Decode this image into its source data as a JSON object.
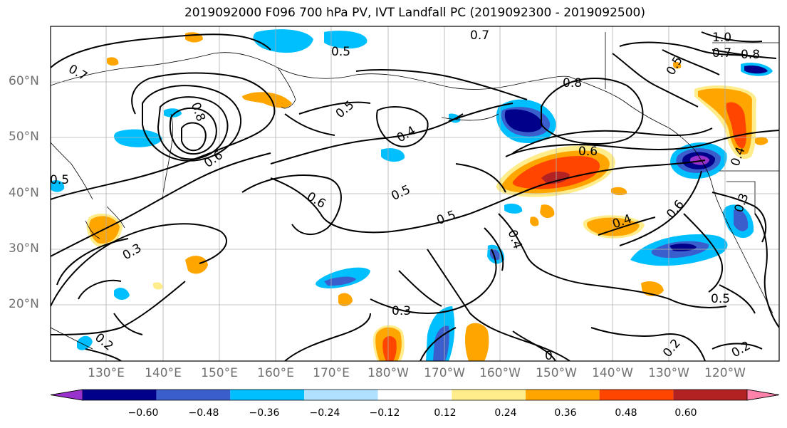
{
  "title": "2019092000 F096 700 hPa PV, IVT Landfall PC (2019092300 - 2019092500)",
  "lat_labels": [
    "60°N",
    "50°N",
    "40°N",
    "30°N",
    "20°N"
  ],
  "lon_labels": [
    "130°E",
    "140°E",
    "150°E",
    "160°E",
    "170°E",
    "180°W",
    "170°W",
    "160°W",
    "150°W",
    "140°W",
    "130°W",
    "120°W"
  ],
  "colorbar": {
    "ticks": [
      "−0.60",
      "−0.48",
      "−0.36",
      "−0.24",
      "−0.12",
      "0.12",
      "0.24",
      "0.36",
      "0.48",
      "0.60"
    ],
    "colors": [
      "#9932CC",
      "#00008B",
      "#3A5FCD",
      "#00BFFF",
      "#B0E2FF",
      "#FFFFFF",
      "#FFEC8B",
      "#FFA500",
      "#FF4500",
      "#B22222",
      "#FF82AB"
    ]
  },
  "contour_labels": [
    "0.7",
    "0.5",
    "0.7",
    "1.0",
    "0.7",
    "0.8",
    "0.5",
    "0.8",
    "0.8",
    "0.5",
    "0.4",
    "0.6",
    "0.6",
    "0.5",
    "0.6",
    "0.5",
    "0.4",
    "0.6",
    "0.4",
    "0.3",
    "0.3",
    "0.5",
    "0.2",
    "0.2",
    "0.2",
    "0.5",
    "0.3",
    "0.4",
    "0"
  ]
}
